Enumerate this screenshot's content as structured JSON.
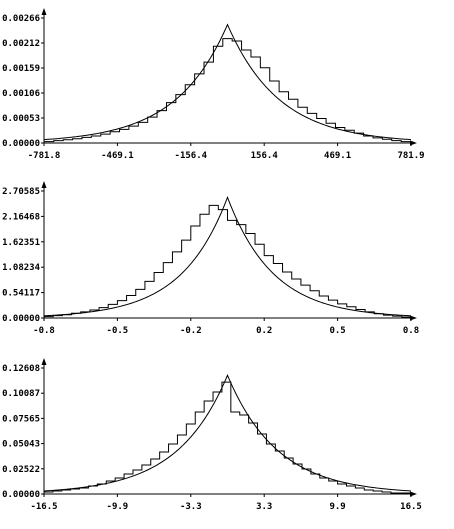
{
  "chart_data": [
    {
      "type": "line",
      "title": "",
      "xlabel": "",
      "ylabel": "",
      "xlim": [
        -781.8,
        781.9
      ],
      "ylim": [
        0.0,
        0.00266
      ],
      "x_tick_labels": [
        "-781.8",
        "-469.1",
        "-156.4",
        "156.4",
        "469.1",
        "781.9"
      ],
      "y_tick_labels": [
        "0.00000",
        "0.00053",
        "0.00106",
        "0.00159",
        "0.00212",
        "0.00266"
      ],
      "grid": false,
      "legend": "none",
      "series": [
        {
          "kind": "smooth_curve",
          "shape": "laplace",
          "center": 0.0,
          "peak": 0.00252,
          "scale": 220.0
        },
        {
          "kind": "histogram_step",
          "bin_edges": [
            -781.8,
            -740.0,
            -700.0,
            -660.0,
            -620.0,
            -580.0,
            -540.0,
            -500.0,
            -460.0,
            -420.0,
            -380.0,
            -340.0,
            -300.0,
            -260.0,
            -220.0,
            -180.0,
            -140.0,
            -100.0,
            -60.0,
            -20.0,
            20.0,
            60.0,
            100.0,
            140.0,
            180.0,
            220.0,
            260.0,
            300.0,
            340.0,
            380.0,
            420.0,
            460.0,
            500.0,
            540.0,
            580.0,
            620.0,
            660.0,
            700.0,
            740.0,
            781.9
          ],
          "values": [
            3e-05,
            5e-05,
            7e-05,
            9e-05,
            0.00012,
            0.00015,
            0.00019,
            0.00024,
            0.00029,
            0.00036,
            0.00044,
            0.00055,
            0.00069,
            0.00086,
            0.00103,
            0.00124,
            0.00147,
            0.00172,
            0.00206,
            0.00222,
            0.00217,
            0.00198,
            0.00183,
            0.0016,
            0.00132,
            0.00109,
            0.00093,
            0.00076,
            0.00063,
            0.00052,
            0.00042,
            0.00033,
            0.00027,
            0.00021,
            0.00015,
            0.00011,
            8e-05,
            5e-05,
            3e-05
          ]
        }
      ]
    },
    {
      "type": "line",
      "title": "",
      "xlabel": "",
      "ylabel": "",
      "xlim": [
        -0.8,
        0.8
      ],
      "ylim": [
        0.0,
        2.70585
      ],
      "x_tick_labels": [
        "-0.8",
        "-0.5",
        "-0.2",
        "0.2",
        "0.5",
        "0.8"
      ],
      "y_tick_labels": [
        "0.00000",
        "0.54117",
        "1.08234",
        "1.62351",
        "2.16468",
        "2.70585"
      ],
      "grid": false,
      "legend": "none",
      "series": [
        {
          "kind": "smooth_curve",
          "shape": "laplace",
          "center": 0.0,
          "peak": 2.57,
          "scale": 0.2
        },
        {
          "kind": "histogram_step",
          "bin_edges": [
            -0.8,
            -0.76,
            -0.72,
            -0.68,
            -0.64,
            -0.6,
            -0.56,
            -0.52,
            -0.48,
            -0.44,
            -0.4,
            -0.36,
            -0.32,
            -0.28,
            -0.24,
            -0.2,
            -0.16,
            -0.12,
            -0.08,
            -0.04,
            0.0,
            0.04,
            0.08,
            0.12,
            0.16,
            0.2,
            0.24,
            0.28,
            0.32,
            0.36,
            0.4,
            0.44,
            0.48,
            0.52,
            0.56,
            0.6,
            0.64,
            0.68,
            0.72,
            0.76,
            0.8
          ],
          "values": [
            0.03,
            0.05,
            0.07,
            0.1,
            0.13,
            0.17,
            0.22,
            0.29,
            0.37,
            0.48,
            0.61,
            0.78,
            0.97,
            1.18,
            1.41,
            1.66,
            1.96,
            2.21,
            2.4,
            2.31,
            2.08,
            1.99,
            1.8,
            1.57,
            1.33,
            1.16,
            0.98,
            0.83,
            0.7,
            0.58,
            0.47,
            0.38,
            0.3,
            0.24,
            0.18,
            0.13,
            0.09,
            0.06,
            0.04,
            0.02
          ]
        }
      ]
    },
    {
      "type": "line",
      "title": "",
      "xlabel": "",
      "ylabel": "",
      "xlim": [
        -16.5,
        16.5
      ],
      "ylim": [
        0.0,
        0.12608
      ],
      "x_tick_labels": [
        "-16.5",
        "-9.9",
        "-3.3",
        "3.3",
        "9.9",
        "16.5"
      ],
      "y_tick_labels": [
        "0.00000",
        "0.02522",
        "0.05043",
        "0.07565",
        "0.10087",
        "0.12608"
      ],
      "grid": false,
      "legend": "none",
      "series": [
        {
          "kind": "smooth_curve",
          "shape": "laplace",
          "center": 0.0,
          "peak": 0.1188,
          "scale": 4.5
        },
        {
          "kind": "histogram_step",
          "bin_edges": [
            -16.5,
            -15.7,
            -14.9,
            -14.1,
            -13.3,
            -12.5,
            -11.7,
            -10.9,
            -10.1,
            -9.3,
            -8.5,
            -7.7,
            -6.9,
            -6.1,
            -5.3,
            -4.5,
            -3.7,
            -2.9,
            -2.1,
            -1.3,
            -0.5,
            0.3,
            1.1,
            1.9,
            2.7,
            3.5,
            4.3,
            5.1,
            5.9,
            6.7,
            7.5,
            8.3,
            9.1,
            9.9,
            10.7,
            11.5,
            12.3,
            13.1,
            13.9,
            14.7,
            15.5,
            16.5
          ],
          "values": [
            0.002,
            0.003,
            0.004,
            0.005,
            0.006,
            0.008,
            0.01,
            0.013,
            0.016,
            0.02,
            0.024,
            0.029,
            0.035,
            0.042,
            0.05,
            0.059,
            0.07,
            0.082,
            0.093,
            0.102,
            0.112,
            0.082,
            0.079,
            0.071,
            0.06,
            0.05,
            0.043,
            0.036,
            0.03,
            0.025,
            0.02,
            0.016,
            0.013,
            0.01,
            0.008,
            0.006,
            0.004,
            0.003,
            0.002,
            0.001,
            0.001
          ]
        }
      ]
    }
  ]
}
